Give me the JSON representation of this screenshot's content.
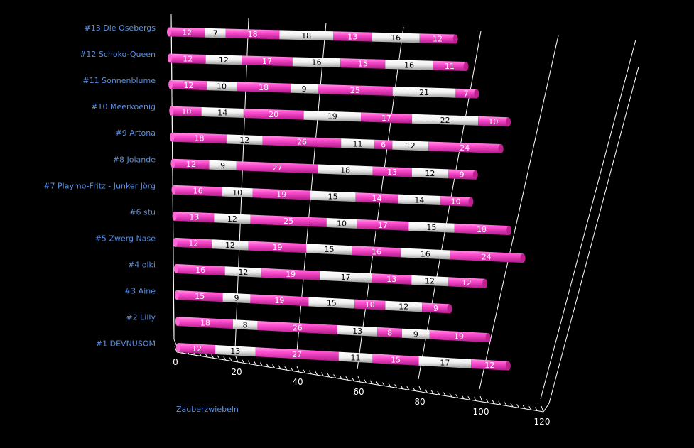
{
  "chart_data": {
    "type": "bar",
    "orientation": "horizontal-stacked-3d",
    "title": "",
    "xlabel": "Zauberzwiebeln",
    "ylabel": "",
    "xlim": [
      0,
      120
    ],
    "x_ticks": [
      "0",
      "20",
      "40",
      "60",
      "80",
      "100",
      "120"
    ],
    "grid": true,
    "colors": {
      "pink": "#ff44cc",
      "white": "#ffffff",
      "background": "#000000",
      "label": "#5b8fe0"
    },
    "categories": [
      "#13 Die Osebergs",
      "#12 Schoko-Queen",
      "#11 Sonnenblume",
      "#10 Meerkoenig",
      "#9 Artona",
      "#8 Jolande",
      "#7 Playmo-Fritz - Junker Jörg",
      "#6 stu",
      "#5 Zwerg Nase",
      "#4 olki",
      "#3 Aine",
      "#2 Lilly",
      "#1 DEVNUSOM"
    ],
    "segments": [
      [
        12,
        7,
        18,
        18,
        13,
        16,
        12
      ],
      [
        12,
        12,
        17,
        16,
        15,
        16,
        11
      ],
      [
        12,
        10,
        18,
        9,
        25,
        21,
        7
      ],
      [
        10,
        14,
        20,
        19,
        17,
        22,
        10
      ],
      [
        18,
        12,
        26,
        11,
        6,
        12,
        24
      ],
      [
        12,
        9,
        27,
        18,
        13,
        12,
        9
      ],
      [
        16,
        10,
        19,
        15,
        14,
        14,
        10
      ],
      [
        13,
        12,
        25,
        10,
        17,
        15,
        18
      ],
      [
        12,
        12,
        19,
        15,
        16,
        16,
        24
      ],
      [
        16,
        12,
        19,
        17,
        13,
        12,
        12
      ],
      [
        15,
        9,
        19,
        15,
        10,
        12,
        9
      ],
      [
        18,
        8,
        26,
        13,
        8,
        9,
        19
      ],
      [
        12,
        13,
        27,
        11,
        15,
        17,
        12
      ]
    ]
  }
}
